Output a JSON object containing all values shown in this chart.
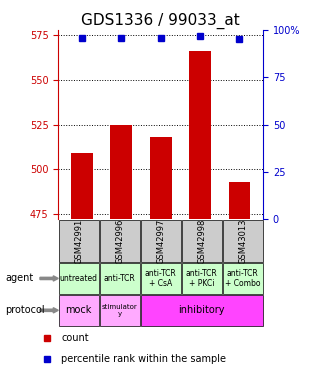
{
  "title": "GDS1336 / 99033_at",
  "samples": [
    "GSM42991",
    "GSM42996",
    "GSM42997",
    "GSM42998",
    "GSM43013"
  ],
  "count_values": [
    509,
    525,
    518,
    566,
    493
  ],
  "percentile_values": [
    96,
    96,
    96,
    97,
    95
  ],
  "ylim_left": [
    472,
    578
  ],
  "ylim_right": [
    0,
    100
  ],
  "yticks_left": [
    475,
    500,
    525,
    550,
    575
  ],
  "yticks_right": [
    0,
    25,
    50,
    75,
    100
  ],
  "bar_color": "#cc0000",
  "dot_color": "#0000cc",
  "bar_bottom": 472,
  "agent_labels": [
    "untreated",
    "anti-TCR",
    "anti-TCR\n+ CsA",
    "anti-TCR\n+ PKCi",
    "anti-TCR\n+ Combo"
  ],
  "agent_bg_color": "#ccffcc",
  "sample_bg_color": "#cccccc",
  "protocol_mock_color": "#ffaaff",
  "protocol_stimulatory_color": "#ffaaff",
  "protocol_inhibitory_color": "#ff44ff",
  "legend_count_color": "#cc0000",
  "legend_percentile_color": "#0000cc",
  "tick_fontsize": 7,
  "sample_label_fontsize": 6,
  "left_axis_color": "#cc0000",
  "right_axis_color": "#0000cc",
  "title_fontsize": 11
}
